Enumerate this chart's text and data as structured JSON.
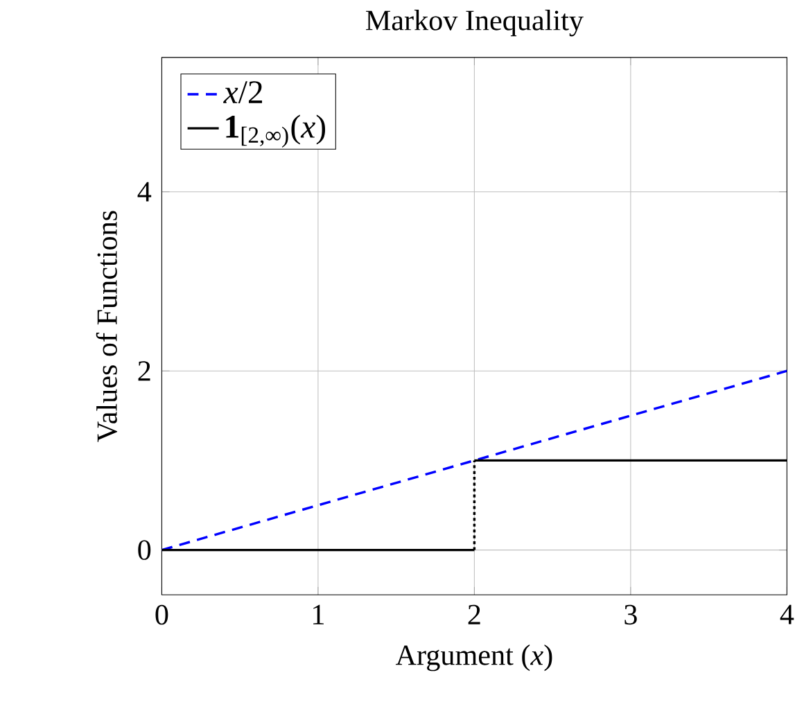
{
  "chart_data": {
    "type": "line",
    "title": "Markov Inequality",
    "xlabel": "Argument (*x*)",
    "ylabel": "Values of Functions",
    "xlim": [
      0,
      4
    ],
    "ylim": [
      -0.5,
      5.5
    ],
    "xticks": [
      0,
      1,
      2,
      3,
      4
    ],
    "yticks": [
      0,
      2,
      4
    ],
    "grid": true,
    "legend": "top left",
    "marker": "none",
    "series": [
      {
        "color": "#000000",
        "line_style": "dotted",
        "x": [
          2,
          2
        ],
        "values": [
          0,
          1
        ]
      },
      {
        "name": "*x*/2",
        "color": "#0000ff",
        "line_style": "dashed",
        "x": [
          0,
          4
        ],
        "values": [
          0,
          2
        ]
      },
      {
        "name": "**1**$_{[2,∞)}$(*x*)",
        "color": "#000000",
        "line_style": "solid",
        "x": [
          0,
          2,
          null,
          2,
          4
        ],
        "values": [
          0,
          0,
          null,
          1,
          1
        ]
      }
    ]
  }
}
